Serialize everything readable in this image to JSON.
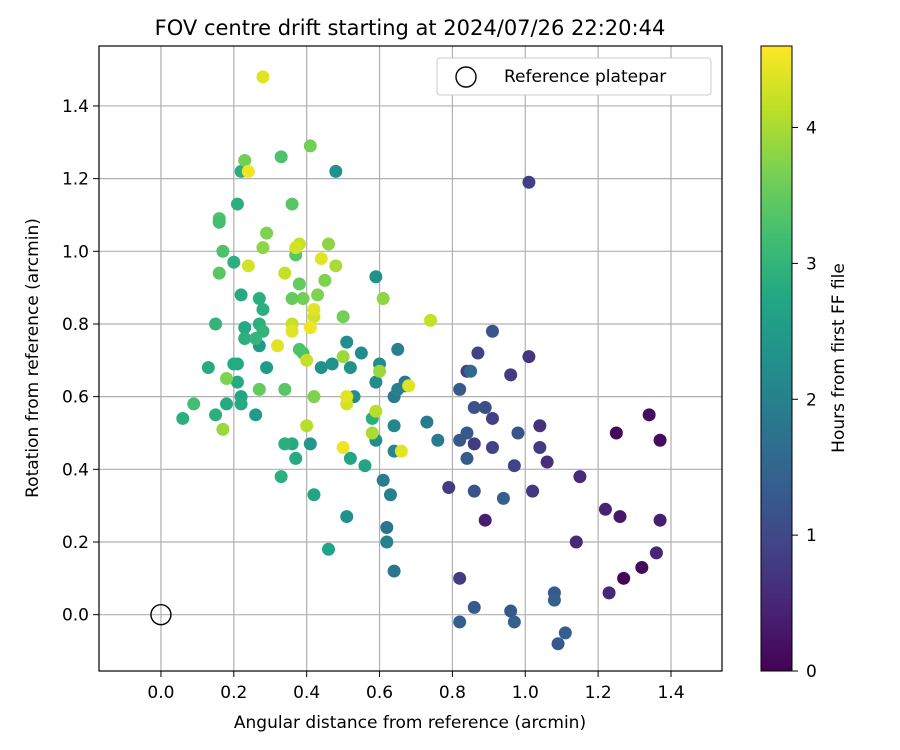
{
  "chart_data": {
    "type": "scatter",
    "title": "FOV centre drift starting at 2024/07/26 22:20:44",
    "xlabel": "Angular distance from reference (arcmin)",
    "ylabel": "Rotation from reference (arcmin)",
    "xlim": [
      -0.17,
      1.54
    ],
    "ylim": [
      -0.155,
      1.565
    ],
    "xticks": [
      "0.0",
      "0.2",
      "0.4",
      "0.6",
      "0.8",
      "1.0",
      "1.2",
      "1.4"
    ],
    "yticks": [
      "0.0",
      "0.2",
      "0.4",
      "0.6",
      "0.8",
      "1.0",
      "1.2",
      "1.4"
    ],
    "grid": true,
    "legend": {
      "placement": "top-right",
      "entries": [
        "Reference platepar"
      ]
    },
    "reference_point": {
      "x": 0.0,
      "y": 0.0,
      "marker": "open-circle"
    },
    "colorbar": {
      "label": "Hours from first FF file",
      "colormap": "viridis",
      "range": [
        0,
        4.6
      ],
      "ticks": [
        "0",
        "1",
        "2",
        "3",
        "4"
      ]
    },
    "points": [
      {
        "x": 1.27,
        "y": 0.1,
        "h": 0.05
      },
      {
        "x": 1.32,
        "y": 0.13,
        "h": 0.1
      },
      {
        "x": 1.25,
        "y": 0.5,
        "h": 0.1
      },
      {
        "x": 1.34,
        "y": 0.55,
        "h": 0.15
      },
      {
        "x": 1.37,
        "y": 0.48,
        "h": 0.15
      },
      {
        "x": 1.26,
        "y": 0.27,
        "h": 0.3
      },
      {
        "x": 1.37,
        "y": 0.26,
        "h": 0.4
      },
      {
        "x": 1.36,
        "y": 0.17,
        "h": 0.5
      },
      {
        "x": 1.23,
        "y": 0.06,
        "h": 0.5
      },
      {
        "x": 1.22,
        "y": 0.29,
        "h": 0.45
      },
      {
        "x": 1.14,
        "y": 0.2,
        "h": 0.5
      },
      {
        "x": 1.15,
        "y": 0.38,
        "h": 0.55
      },
      {
        "x": 1.06,
        "y": 0.42,
        "h": 0.6
      },
      {
        "x": 0.89,
        "y": 0.26,
        "h": 0.4
      },
      {
        "x": 1.04,
        "y": 0.52,
        "h": 0.65
      },
      {
        "x": 1.01,
        "y": 0.71,
        "h": 0.7
      },
      {
        "x": 1.01,
        "y": 1.19,
        "h": 0.85
      },
      {
        "x": 0.96,
        "y": 0.66,
        "h": 0.8
      },
      {
        "x": 1.04,
        "y": 0.46,
        "h": 0.8
      },
      {
        "x": 1.02,
        "y": 0.34,
        "h": 0.75
      },
      {
        "x": 0.97,
        "y": 0.41,
        "h": 0.9
      },
      {
        "x": 0.91,
        "y": 0.54,
        "h": 0.85
      },
      {
        "x": 0.87,
        "y": 0.72,
        "h": 0.9
      },
      {
        "x": 0.86,
        "y": 0.47,
        "h": 0.8
      },
      {
        "x": 0.91,
        "y": 0.46,
        "h": 0.9
      },
      {
        "x": 0.79,
        "y": 0.35,
        "h": 0.8
      },
      {
        "x": 0.82,
        "y": 0.1,
        "h": 0.8
      },
      {
        "x": 0.84,
        "y": 0.67,
        "h": 0.85
      },
      {
        "x": 0.91,
        "y": 0.78,
        "h": 1.2
      },
      {
        "x": 0.98,
        "y": 0.5,
        "h": 1.2
      },
      {
        "x": 0.89,
        "y": 0.57,
        "h": 1.1
      },
      {
        "x": 0.86,
        "y": 0.57,
        "h": 1.2
      },
      {
        "x": 0.86,
        "y": 0.34,
        "h": 1.2
      },
      {
        "x": 0.84,
        "y": 0.43,
        "h": 1.3
      },
      {
        "x": 0.84,
        "y": 0.5,
        "h": 1.3
      },
      {
        "x": 0.82,
        "y": 0.48,
        "h": 1.25
      },
      {
        "x": 0.82,
        "y": 0.62,
        "h": 1.3
      },
      {
        "x": 0.94,
        "y": 0.32,
        "h": 1.4
      },
      {
        "x": 0.96,
        "y": 0.01,
        "h": 1.3
      },
      {
        "x": 0.97,
        "y": -0.02,
        "h": 1.4
      },
      {
        "x": 0.86,
        "y": 0.02,
        "h": 1.3
      },
      {
        "x": 0.82,
        "y": -0.02,
        "h": 1.4
      },
      {
        "x": 1.08,
        "y": 0.06,
        "h": 1.3
      },
      {
        "x": 1.08,
        "y": 0.04,
        "h": 1.4
      },
      {
        "x": 1.09,
        "y": -0.08,
        "h": 1.3
      },
      {
        "x": 1.11,
        "y": -0.05,
        "h": 1.4
      },
      {
        "x": 0.85,
        "y": 0.67,
        "h": 1.6
      },
      {
        "x": 0.76,
        "y": 0.48,
        "h": 1.9
      },
      {
        "x": 0.73,
        "y": 0.53,
        "h": 1.9
      },
      {
        "x": 0.67,
        "y": 0.64,
        "h": 1.8
      },
      {
        "x": 0.67,
        "y": 0.63,
        "h": 1.9
      },
      {
        "x": 0.65,
        "y": 0.73,
        "h": 2.0
      },
      {
        "x": 0.64,
        "y": 0.6,
        "h": 1.9
      },
      {
        "x": 0.64,
        "y": 0.12,
        "h": 1.8
      },
      {
        "x": 0.62,
        "y": 0.24,
        "h": 1.8
      },
      {
        "x": 0.61,
        "y": 0.37,
        "h": 1.9
      },
      {
        "x": 0.62,
        "y": 0.2,
        "h": 2.0
      },
      {
        "x": 0.63,
        "y": 0.33,
        "h": 2.0
      },
      {
        "x": 0.64,
        "y": 0.45,
        "h": 2.1
      },
      {
        "x": 0.64,
        "y": 0.52,
        "h": 2.1
      },
      {
        "x": 0.65,
        "y": 0.62,
        "h": 2.0
      },
      {
        "x": 0.59,
        "y": 0.48,
        "h": 2.2
      },
      {
        "x": 0.59,
        "y": 0.64,
        "h": 2.2
      },
      {
        "x": 0.6,
        "y": 0.69,
        "h": 2.2
      },
      {
        "x": 0.59,
        "y": 0.93,
        "h": 2.3
      },
      {
        "x": 0.55,
        "y": 0.72,
        "h": 2.2
      },
      {
        "x": 0.53,
        "y": 0.6,
        "h": 2.2
      },
      {
        "x": 0.51,
        "y": 0.75,
        "h": 2.2
      },
      {
        "x": 0.52,
        "y": 0.68,
        "h": 2.3
      },
      {
        "x": 0.51,
        "y": 0.27,
        "h": 2.3
      },
      {
        "x": 0.48,
        "y": 1.22,
        "h": 2.3
      },
      {
        "x": 0.47,
        "y": 0.69,
        "h": 2.3
      },
      {
        "x": 0.44,
        "y": 0.68,
        "h": 2.3
      },
      {
        "x": 0.41,
        "y": 0.47,
        "h": 2.4
      },
      {
        "x": 0.42,
        "y": 0.33,
        "h": 2.7
      },
      {
        "x": 0.46,
        "y": 0.18,
        "h": 2.7
      },
      {
        "x": 0.52,
        "y": 0.43,
        "h": 2.7
      },
      {
        "x": 0.56,
        "y": 0.41,
        "h": 2.7
      },
      {
        "x": 0.58,
        "y": 0.54,
        "h": 2.9
      },
      {
        "x": 0.37,
        "y": 0.43,
        "h": 2.8
      },
      {
        "x": 0.36,
        "y": 0.47,
        "h": 2.8
      },
      {
        "x": 0.34,
        "y": 0.47,
        "h": 2.9
      },
      {
        "x": 0.33,
        "y": 0.38,
        "h": 2.9
      },
      {
        "x": 0.29,
        "y": 0.68,
        "h": 2.5
      },
      {
        "x": 0.27,
        "y": 0.74,
        "h": 2.5
      },
      {
        "x": 0.26,
        "y": 0.55,
        "h": 2.5
      },
      {
        "x": 0.22,
        "y": 0.6,
        "h": 2.7
      },
      {
        "x": 0.22,
        "y": 0.58,
        "h": 2.8
      },
      {
        "x": 0.21,
        "y": 0.64,
        "h": 2.8
      },
      {
        "x": 0.21,
        "y": 0.69,
        "h": 2.8
      },
      {
        "x": 0.2,
        "y": 0.69,
        "h": 2.8
      },
      {
        "x": 0.18,
        "y": 0.58,
        "h": 2.8
      },
      {
        "x": 0.13,
        "y": 0.68,
        "h": 2.8
      },
      {
        "x": 0.15,
        "y": 0.55,
        "h": 2.9
      },
      {
        "x": 0.06,
        "y": 0.54,
        "h": 2.9
      },
      {
        "x": 0.09,
        "y": 0.58,
        "h": 3.2
      },
      {
        "x": 0.22,
        "y": 0.88,
        "h": 2.8
      },
      {
        "x": 0.23,
        "y": 0.79,
        "h": 2.8
      },
      {
        "x": 0.23,
        "y": 0.76,
        "h": 2.9
      },
      {
        "x": 0.27,
        "y": 0.8,
        "h": 2.9
      },
      {
        "x": 0.27,
        "y": 0.87,
        "h": 2.9
      },
      {
        "x": 0.28,
        "y": 0.84,
        "h": 2.9
      },
      {
        "x": 0.28,
        "y": 0.78,
        "h": 3.0
      },
      {
        "x": 0.26,
        "y": 0.76,
        "h": 3.0
      },
      {
        "x": 0.21,
        "y": 1.13,
        "h": 2.9
      },
      {
        "x": 0.22,
        "y": 1.22,
        "h": 2.9
      },
      {
        "x": 0.2,
        "y": 0.97,
        "h": 2.9
      },
      {
        "x": 0.17,
        "y": 1.0,
        "h": 3.3
      },
      {
        "x": 0.16,
        "y": 0.94,
        "h": 3.4
      },
      {
        "x": 0.16,
        "y": 1.09,
        "h": 3.3
      },
      {
        "x": 0.16,
        "y": 1.08,
        "h": 3.2
      },
      {
        "x": 0.15,
        "y": 0.8,
        "h": 3.0
      },
      {
        "x": 0.18,
        "y": 0.65,
        "h": 3.7
      },
      {
        "x": 0.17,
        "y": 0.51,
        "h": 3.9
      },
      {
        "x": 0.23,
        "y": 1.25,
        "h": 3.6
      },
      {
        "x": 0.28,
        "y": 1.01,
        "h": 3.8
      },
      {
        "x": 0.29,
        "y": 1.05,
        "h": 3.7
      },
      {
        "x": 0.27,
        "y": 0.62,
        "h": 3.5
      },
      {
        "x": 0.33,
        "y": 1.26,
        "h": 3.3
      },
      {
        "x": 0.36,
        "y": 1.13,
        "h": 3.4
      },
      {
        "x": 0.37,
        "y": 0.99,
        "h": 3.4
      },
      {
        "x": 0.38,
        "y": 0.91,
        "h": 3.5
      },
      {
        "x": 0.39,
        "y": 0.87,
        "h": 3.6
      },
      {
        "x": 0.36,
        "y": 0.87,
        "h": 3.5
      },
      {
        "x": 0.38,
        "y": 0.73,
        "h": 3.3
      },
      {
        "x": 0.39,
        "y": 0.72,
        "h": 3.3
      },
      {
        "x": 0.34,
        "y": 0.62,
        "h": 3.4
      },
      {
        "x": 0.41,
        "y": 1.29,
        "h": 3.6
      },
      {
        "x": 0.46,
        "y": 1.02,
        "h": 3.8
      },
      {
        "x": 0.45,
        "y": 0.92,
        "h": 3.7
      },
      {
        "x": 0.43,
        "y": 0.88,
        "h": 3.7
      },
      {
        "x": 0.42,
        "y": 0.6,
        "h": 3.7
      },
      {
        "x": 0.5,
        "y": 0.82,
        "h": 3.6
      },
      {
        "x": 0.48,
        "y": 0.96,
        "h": 4.0
      },
      {
        "x": 0.4,
        "y": 0.52,
        "h": 4.1
      },
      {
        "x": 0.4,
        "y": 0.7,
        "h": 4.2
      },
      {
        "x": 0.36,
        "y": 0.8,
        "h": 4.2
      },
      {
        "x": 0.34,
        "y": 0.94,
        "h": 4.2
      },
      {
        "x": 0.38,
        "y": 1.02,
        "h": 4.2
      },
      {
        "x": 0.37,
        "y": 1.01,
        "h": 4.3
      },
      {
        "x": 0.44,
        "y": 0.98,
        "h": 4.4
      },
      {
        "x": 0.42,
        "y": 0.82,
        "h": 4.3
      },
      {
        "x": 0.42,
        "y": 0.84,
        "h": 4.4
      },
      {
        "x": 0.41,
        "y": 0.79,
        "h": 4.5
      },
      {
        "x": 0.36,
        "y": 0.78,
        "h": 4.4
      },
      {
        "x": 0.32,
        "y": 0.74,
        "h": 4.4
      },
      {
        "x": 0.24,
        "y": 0.96,
        "h": 4.3
      },
      {
        "x": 0.24,
        "y": 1.22,
        "h": 4.5
      },
      {
        "x": 0.28,
        "y": 1.48,
        "h": 4.4
      },
      {
        "x": 0.61,
        "y": 0.87,
        "h": 3.8
      },
      {
        "x": 0.6,
        "y": 0.67,
        "h": 3.9
      },
      {
        "x": 0.5,
        "y": 0.71,
        "h": 3.9
      },
      {
        "x": 0.59,
        "y": 0.56,
        "h": 4.1
      },
      {
        "x": 0.58,
        "y": 0.5,
        "h": 4.0
      },
      {
        "x": 0.51,
        "y": 0.58,
        "h": 4.3
      },
      {
        "x": 0.51,
        "y": 0.6,
        "h": 4.4
      },
      {
        "x": 0.5,
        "y": 0.46,
        "h": 4.5
      },
      {
        "x": 0.66,
        "y": 0.45,
        "h": 4.4
      },
      {
        "x": 0.68,
        "y": 0.63,
        "h": 4.4
      },
      {
        "x": 0.74,
        "y": 0.81,
        "h": 4.2
      }
    ]
  }
}
